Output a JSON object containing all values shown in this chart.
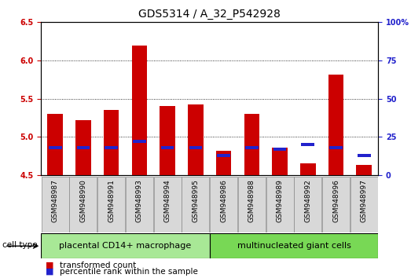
{
  "title": "GDS5314 / A_32_P542928",
  "samples": [
    "GSM948987",
    "GSM948990",
    "GSM948991",
    "GSM948993",
    "GSM948994",
    "GSM948995",
    "GSM948986",
    "GSM948988",
    "GSM948989",
    "GSM948992",
    "GSM948996",
    "GSM948997"
  ],
  "transformed_count": [
    5.3,
    5.22,
    5.35,
    6.2,
    5.4,
    5.42,
    4.82,
    5.3,
    4.86,
    4.65,
    5.82,
    4.63
  ],
  "percentile_rank": [
    18,
    18,
    18,
    22,
    18,
    18,
    13,
    18,
    17,
    20,
    18,
    13
  ],
  "groups": [
    {
      "label": "placental CD14+ macrophage",
      "count": 6,
      "color": "#a8e896"
    },
    {
      "label": "multinucleated giant cells",
      "count": 6,
      "color": "#78d855"
    }
  ],
  "ymin": 4.5,
  "ymax": 6.5,
  "yticks": [
    4.5,
    5.0,
    5.5,
    6.0,
    6.5
  ],
  "right_yticks": [
    0,
    25,
    50,
    75,
    100
  ],
  "bar_color_red": "#cc0000",
  "bar_color_blue": "#2222cc",
  "bar_width": 0.55,
  "baseline": 4.5,
  "cell_type_label": "cell type",
  "legend_items": [
    {
      "label": "transformed count",
      "color": "#cc0000"
    },
    {
      "label": "percentile rank within the sample",
      "color": "#2222cc"
    }
  ],
  "title_fontsize": 10,
  "tick_fontsize": 7,
  "label_fontsize": 7.5,
  "group_label_fontsize": 8,
  "xticklabel_fontsize": 6.5
}
